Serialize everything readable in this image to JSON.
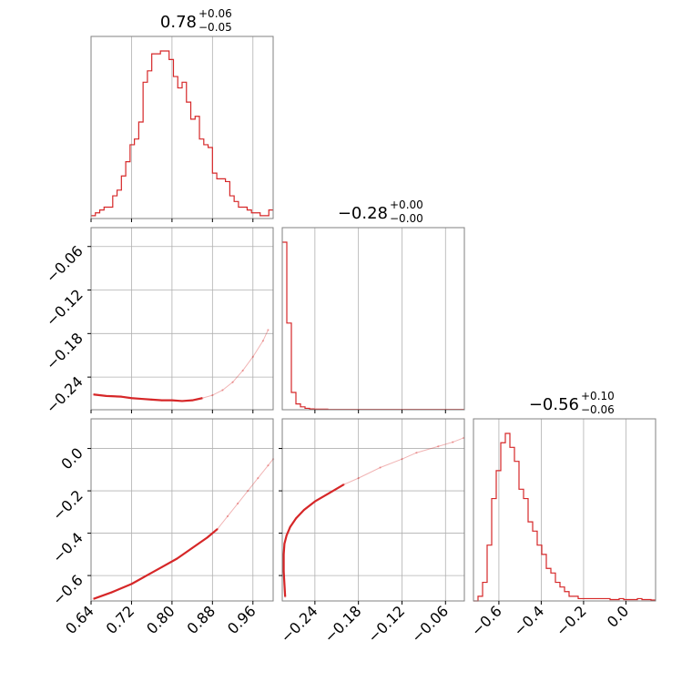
{
  "chart_data": {
    "type": "corner",
    "color": "#d62728",
    "grid": true,
    "titles": [
      {
        "value": "0.78",
        "plus": "+0.06",
        "minus": "−0.05"
      },
      {
        "value": "−0.28",
        "plus": "+0.00",
        "minus": "−0.00"
      },
      {
        "value": "−0.56",
        "plus": "+0.10",
        "minus": "−0.06"
      }
    ],
    "params": [
      {
        "range": [
          0.64,
          1.0
        ],
        "ticks": [
          0.64,
          0.72,
          0.8,
          0.88,
          0.96
        ],
        "tick_labels": [
          "0.64",
          "0.72",
          "0.80",
          "0.88",
          "0.96"
        ]
      },
      {
        "range": [
          -0.285,
          -0.034
        ],
        "ticks": [
          -0.24,
          -0.18,
          -0.12,
          -0.06
        ],
        "tick_labels": [
          "−0.24",
          "−0.18",
          "−0.12",
          "−0.06"
        ]
      },
      {
        "range": [
          -0.72,
          0.14
        ],
        "ticks": [
          -0.6,
          -0.4,
          -0.2,
          0.0
        ],
        "tick_labels": [
          "−0.6",
          "−0.4",
          "−0.2",
          "0.0"
        ]
      }
    ],
    "histograms": [
      {
        "param": 0,
        "counts": [
          1,
          2,
          3,
          4,
          4,
          8,
          10,
          15,
          20,
          26,
          28,
          34,
          48,
          52,
          58,
          58,
          59,
          59,
          56,
          50,
          46,
          48,
          41,
          35,
          36,
          28,
          26,
          25,
          16,
          14,
          14,
          13,
          8,
          6,
          4,
          4,
          3,
          2,
          2,
          1,
          1,
          3
        ]
      },
      {
        "param": 1,
        "counts": [
          58,
          30,
          6,
          2,
          1,
          0.5,
          0.3,
          0.2,
          0.2,
          0.2,
          0.1,
          0.1,
          0.1,
          0.1,
          0.1,
          0.1,
          0.1,
          0.1,
          0.1,
          0.1,
          0.1,
          0.1,
          0.1,
          0.1,
          0.1,
          0.1,
          0.1,
          0.1,
          0.1,
          0.1,
          0.1,
          0.1,
          0.1,
          0.1,
          0.1,
          0.1,
          0.1,
          0.1,
          0.1,
          0.1
        ]
      },
      {
        "param": 2,
        "counts": [
          0,
          1,
          4,
          12,
          22,
          28,
          34,
          36,
          33,
          30,
          24,
          22,
          17,
          15,
          12,
          10,
          7,
          6,
          4,
          3,
          2,
          1,
          1,
          0.5,
          0.5,
          0.5,
          0.5,
          0.5,
          0.5,
          0.5,
          0.3,
          0.3,
          0.5,
          0.3,
          0.3,
          0.3,
          0.5,
          0.3,
          0.3,
          0.2
        ]
      }
    ],
    "chains": [
      {
        "x": 0,
        "y": 1,
        "points": [
          [
            0.645,
            -0.264
          ],
          [
            0.67,
            -0.266
          ],
          [
            0.7,
            -0.267
          ],
          [
            0.72,
            -0.269
          ],
          [
            0.74,
            -0.27
          ],
          [
            0.76,
            -0.271
          ],
          [
            0.78,
            -0.272
          ],
          [
            0.8,
            -0.272
          ],
          [
            0.82,
            -0.273
          ],
          [
            0.84,
            -0.272
          ],
          [
            0.86,
            -0.269
          ],
          [
            0.88,
            -0.265
          ],
          [
            0.9,
            -0.258
          ],
          [
            0.92,
            -0.247
          ],
          [
            0.94,
            -0.231
          ],
          [
            0.96,
            -0.212
          ],
          [
            0.98,
            -0.19
          ],
          [
            0.99,
            -0.175
          ]
        ]
      },
      {
        "x": 0,
        "y": 2,
        "points": [
          [
            0.645,
            -0.71
          ],
          [
            0.68,
            -0.68
          ],
          [
            0.72,
            -0.64
          ],
          [
            0.75,
            -0.6
          ],
          [
            0.78,
            -0.56
          ],
          [
            0.81,
            -0.52
          ],
          [
            0.84,
            -0.47
          ],
          [
            0.87,
            -0.42
          ],
          [
            0.89,
            -0.38
          ],
          [
            0.91,
            -0.32
          ],
          [
            0.93,
            -0.26
          ],
          [
            0.95,
            -0.2
          ],
          [
            0.97,
            -0.14
          ],
          [
            0.99,
            -0.08
          ],
          [
            1.0,
            -0.05
          ]
        ]
      },
      {
        "x": 1,
        "y": 2,
        "points": [
          [
            -0.281,
            -0.7
          ],
          [
            -0.282,
            -0.64
          ],
          [
            -0.283,
            -0.58
          ],
          [
            -0.283,
            -0.5
          ],
          [
            -0.282,
            -0.45
          ],
          [
            -0.279,
            -0.41
          ],
          [
            -0.274,
            -0.37
          ],
          [
            -0.266,
            -0.33
          ],
          [
            -0.255,
            -0.29
          ],
          [
            -0.24,
            -0.25
          ],
          [
            -0.22,
            -0.21
          ],
          [
            -0.2,
            -0.17
          ],
          [
            -0.18,
            -0.14
          ],
          [
            -0.15,
            -0.09
          ],
          [
            -0.12,
            -0.05
          ],
          [
            -0.1,
            -0.02
          ],
          [
            -0.07,
            0.01
          ],
          [
            -0.05,
            0.03
          ],
          [
            -0.035,
            0.05
          ]
        ]
      }
    ]
  }
}
